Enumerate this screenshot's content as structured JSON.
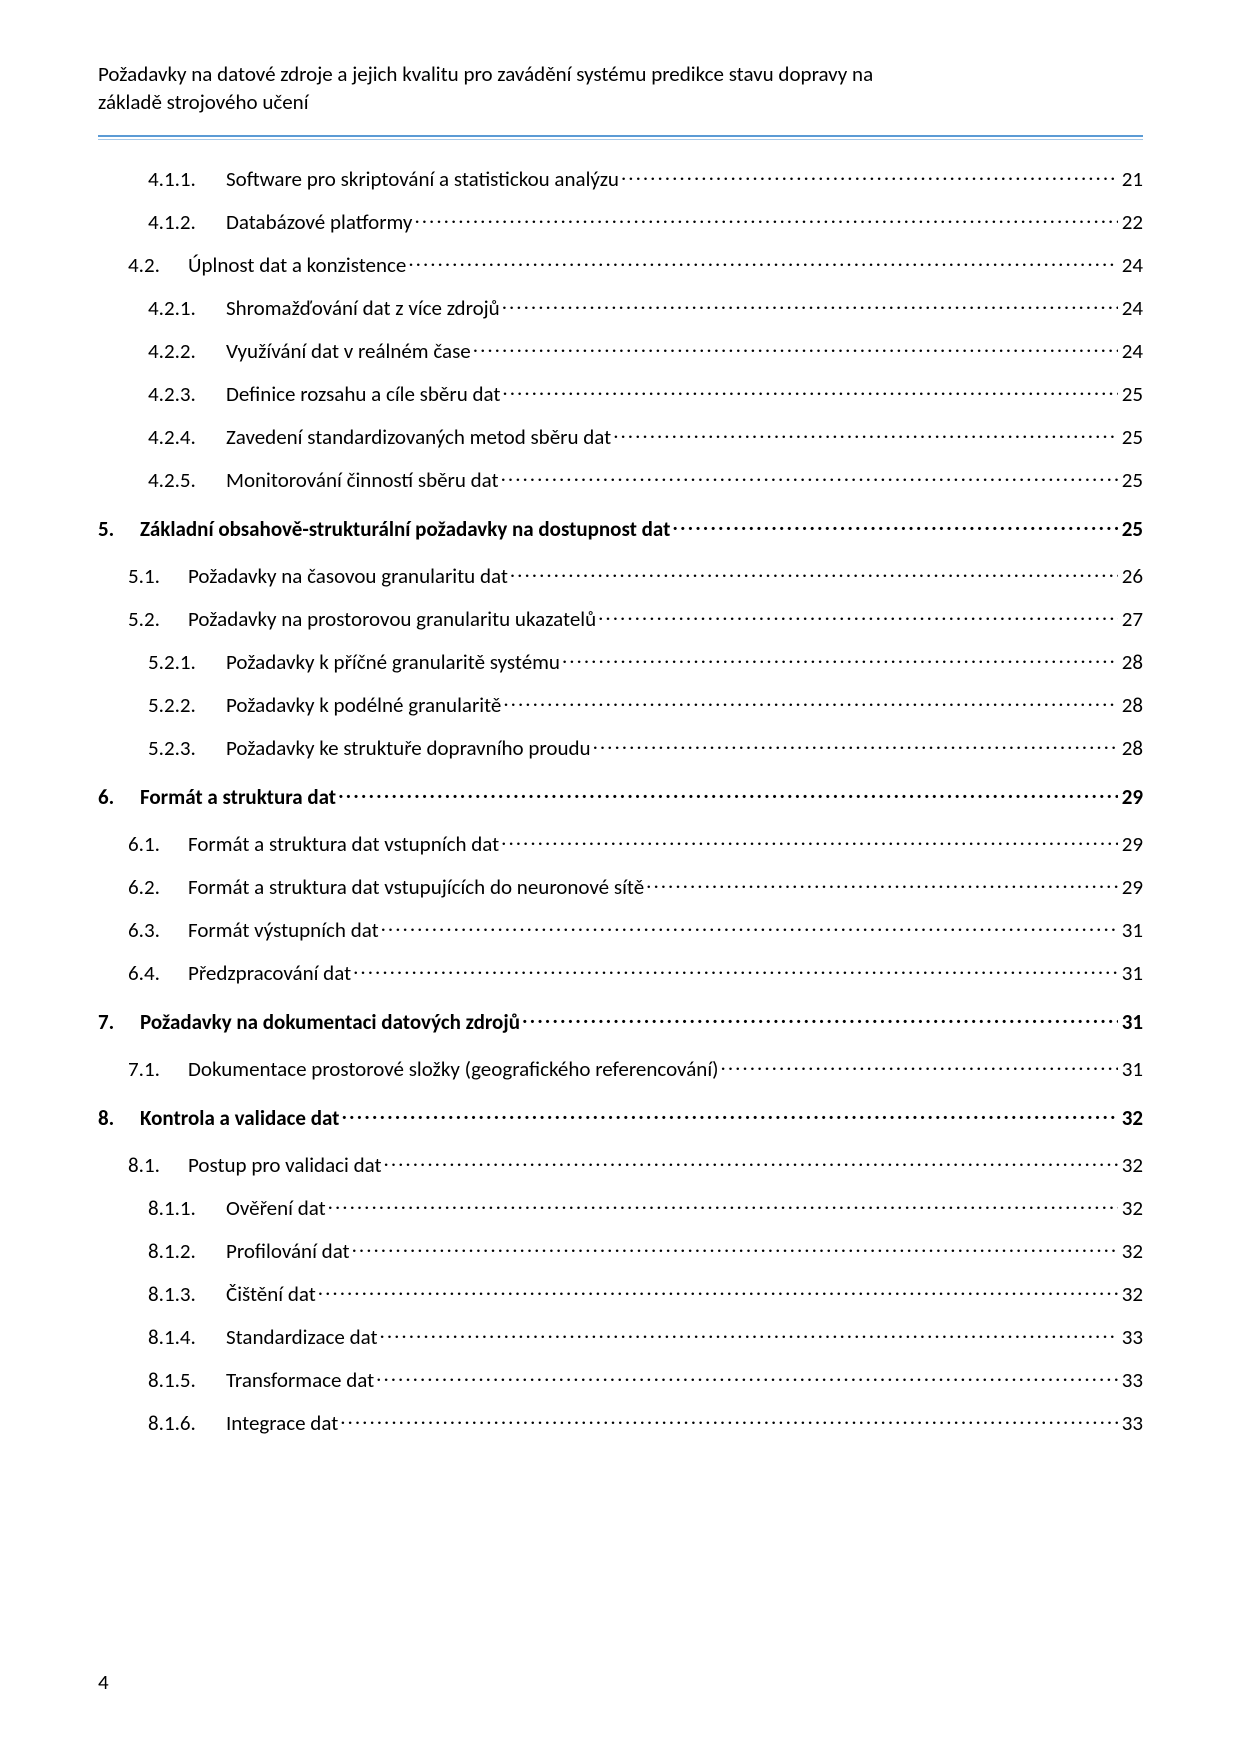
{
  "header": {
    "line1": "Požadavky na datové zdroje a jejich kvalitu pro zavádění systému predikce stavu dopravy na",
    "line2": "základě strojového učení"
  },
  "toc": [
    {
      "level": 3,
      "num": "4.1.1.",
      "title": "Software pro skriptování a statistickou analýzu",
      "page": "21"
    },
    {
      "level": 3,
      "num": "4.1.2.",
      "title": "Databázové platformy",
      "page": "22"
    },
    {
      "level": 2,
      "num": "4.2.",
      "title": "Úplnost dat a konzistence",
      "page": "24"
    },
    {
      "level": 3,
      "num": "4.2.1.",
      "title": "Shromažďování dat z více zdrojů",
      "page": "24"
    },
    {
      "level": 3,
      "num": "4.2.2.",
      "title": "Využívání dat v reálném čase",
      "page": "24"
    },
    {
      "level": 3,
      "num": "4.2.3.",
      "title": "Definice rozsahu a cíle sběru dat",
      "page": "25"
    },
    {
      "level": 3,
      "num": "4.2.4.",
      "title": "Zavedení standardizovaných metod sběru dat",
      "page": "25"
    },
    {
      "level": 3,
      "num": "4.2.5.",
      "title": "Monitorování činností sběru dat",
      "page": "25"
    },
    {
      "level": 1,
      "num": "5.",
      "title": "Základní obsahově-strukturální požadavky na dostupnost dat",
      "page": "25"
    },
    {
      "level": 2,
      "num": "5.1.",
      "title": "Požadavky na časovou granularitu dat",
      "page": "26"
    },
    {
      "level": 2,
      "num": "5.2.",
      "title": "Požadavky na prostorovou granularitu ukazatelů",
      "page": "27"
    },
    {
      "level": 3,
      "num": "5.2.1.",
      "title": "Požadavky k příčné granularitě systému",
      "page": "28"
    },
    {
      "level": 3,
      "num": "5.2.2.",
      "title": "Požadavky k podélné granularitě",
      "page": "28"
    },
    {
      "level": 3,
      "num": "5.2.3.",
      "title": "Požadavky ke struktuře dopravního proudu",
      "page": "28"
    },
    {
      "level": 1,
      "num": "6.",
      "title": "Formát a struktura dat",
      "page": "29"
    },
    {
      "level": 2,
      "num": "6.1.",
      "title": "Formát a struktura dat vstupních dat",
      "page": "29"
    },
    {
      "level": 2,
      "num": "6.2.",
      "title": "Formát a struktura dat vstupujících do neuronové sítě",
      "page": "29"
    },
    {
      "level": 2,
      "num": "6.3.",
      "title": "Formát výstupních dat",
      "page": "31"
    },
    {
      "level": 2,
      "num": "6.4.",
      "title": "Předzpracování dat",
      "page": "31"
    },
    {
      "level": 1,
      "num": "7.",
      "title": "Požadavky na dokumentaci datových zdrojů",
      "page": "31"
    },
    {
      "level": 2,
      "num": "7.1.",
      "title": "Dokumentace prostorové složky (geografického referencování)",
      "page": "31"
    },
    {
      "level": 1,
      "num": "8.",
      "title": "Kontrola a validace dat",
      "page": "32"
    },
    {
      "level": 2,
      "num": "8.1.",
      "title": "Postup pro validaci dat",
      "page": "32"
    },
    {
      "level": 3,
      "num": "8.1.1.",
      "title": "Ověření dat",
      "page": "32"
    },
    {
      "level": 3,
      "num": "8.1.2.",
      "title": "Profilování dat",
      "page": "32"
    },
    {
      "level": 3,
      "num": "8.1.3.",
      "title": "Čištění dat",
      "page": "32"
    },
    {
      "level": 3,
      "num": "8.1.4.",
      "title": "Standardizace dat",
      "page": "33"
    },
    {
      "level": 3,
      "num": "8.1.5.",
      "title": "Transformace dat",
      "page": "33"
    },
    {
      "level": 3,
      "num": "8.1.6.",
      "title": "Integrace dat",
      "page": "33"
    }
  ],
  "pageNumber": "4",
  "style": {
    "rule_top_color": "#5b9bd5",
    "rule_sub_color": "#a6c8e8",
    "text_color": "#000000",
    "background_color": "#ffffff",
    "font_size_pt": 16
  }
}
